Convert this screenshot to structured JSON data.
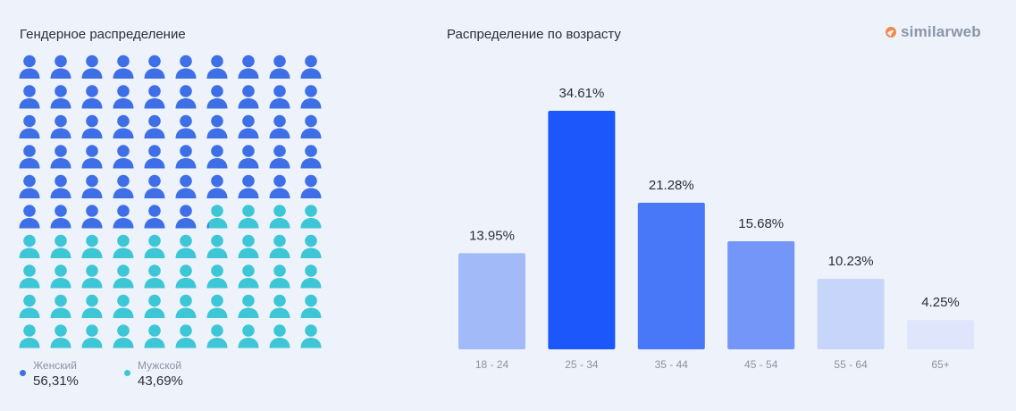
{
  "gender": {
    "title": "Гендерное распределение",
    "legend": [
      {
        "label": "Женский",
        "value": "56,31%",
        "color": "#3f6fe6"
      },
      {
        "label": "Мужской",
        "value": "43,69%",
        "color": "#3dc6d6"
      }
    ]
  },
  "age": {
    "title": "Распределение по возрасту"
  },
  "logo": {
    "text": "similarweb"
  },
  "chart_data": [
    {
      "type": "pictograph",
      "categories": [
        "Женский",
        "Мужской"
      ],
      "values": [
        56.31,
        43.69
      ],
      "icon": "person-icon",
      "grid": [
        10,
        10
      ]
    },
    {
      "type": "bar",
      "categories": [
        "18 - 24",
        "25 - 34",
        "35 - 44",
        "45 - 54",
        "55 - 64",
        "65+"
      ],
      "values": [
        13.95,
        34.61,
        21.28,
        15.68,
        10.23,
        4.25
      ],
      "value_labels": [
        "13.95%",
        "34.61%",
        "21.28%",
        "15.68%",
        "10.23%",
        "4.25%"
      ],
      "colors": [
        "#a3baf9",
        "#1b57fb",
        "#4878f7",
        "#7396f8",
        "#c8d5fa",
        "#dfe6fb"
      ],
      "ylim": [
        0,
        34.61
      ],
      "grid": false
    }
  ]
}
